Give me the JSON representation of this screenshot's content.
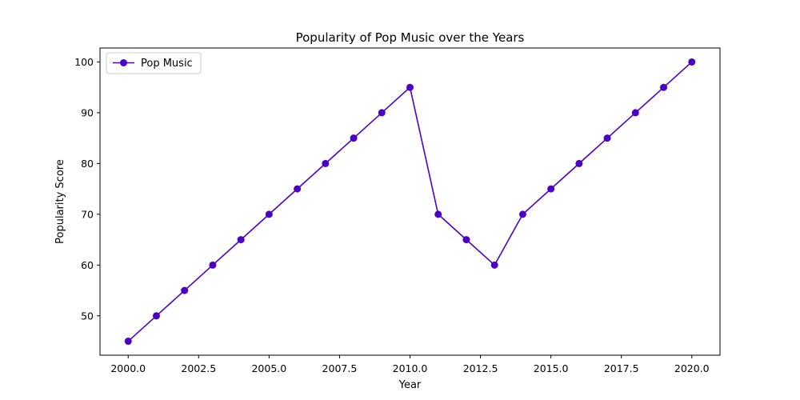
{
  "chart_data": {
    "type": "line",
    "title": "Popularity of Pop Music over the Years",
    "xlabel": "Year",
    "ylabel": "Popularity Score",
    "xlim": [
      1999,
      2021
    ],
    "ylim": [
      42.25,
      102.75
    ],
    "x_ticks": [
      2000,
      2002.5,
      2005,
      2007.5,
      2010,
      2012.5,
      2015,
      2017.5,
      2020
    ],
    "x_tick_labels": [
      "2000.0",
      "2002.5",
      "2005.0",
      "2007.5",
      "2010.0",
      "2012.5",
      "2015.0",
      "2017.5",
      "2020.0"
    ],
    "y_ticks": [
      50,
      60,
      70,
      80,
      90,
      100
    ],
    "y_tick_labels": [
      "50",
      "60",
      "70",
      "80",
      "90",
      "100"
    ],
    "grid": false,
    "legend": {
      "placement": "top-left"
    },
    "series": [
      {
        "name": "Pop Music",
        "color": "#4b00c8",
        "marker": "circle",
        "x": [
          2000,
          2001,
          2002,
          2003,
          2004,
          2005,
          2006,
          2007,
          2008,
          2009,
          2010,
          2011,
          2012,
          2013,
          2014,
          2015,
          2016,
          2017,
          2018,
          2019,
          2020
        ],
        "values": [
          45,
          50,
          55,
          60,
          65,
          70,
          75,
          80,
          85,
          90,
          95,
          70,
          65,
          60,
          70,
          75,
          80,
          85,
          90,
          95,
          100
        ]
      }
    ]
  }
}
